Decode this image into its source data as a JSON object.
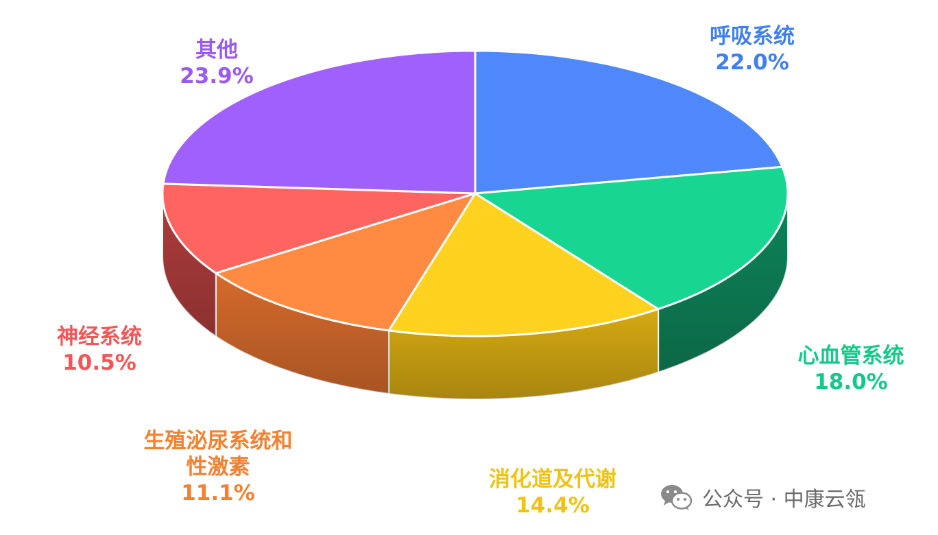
{
  "chart_data": {
    "type": "pie",
    "style": "3d",
    "slices": [
      {
        "label": "呼吸系统",
        "value_label": "22.0%",
        "value": 22.0,
        "color": "#4f88fb",
        "side_color": "#2c5cc4"
      },
      {
        "label": "心血管系统",
        "value_label": "18.0%",
        "value": 18.0,
        "color": "#19d592",
        "side_color": "#0f8a5f"
      },
      {
        "label": "消化道及代谢",
        "value_label": "14.4%",
        "value": 14.4,
        "color": "#fed21f",
        "side_color": "#e0b214"
      },
      {
        "label": "生殖泌尿系统和性激素",
        "value_label": "11.1%",
        "value": 11.1,
        "color": "#ff8b42",
        "side_color": "#e0702e"
      },
      {
        "label": "神经系统",
        "value_label": "10.5%",
        "value": 10.5,
        "color": "#ff6560",
        "side_color": "#b84040"
      },
      {
        "label": "其他",
        "value_label": "23.9%",
        "value": 23.9,
        "color": "#a060fb",
        "side_color": "#6f3fc0"
      }
    ]
  },
  "label_colors": [
    "#3f7ff5",
    "#13c98a",
    "#f0c215",
    "#f5802f",
    "#f55555",
    "#9a58f5"
  ],
  "watermark": {
    "text": "公众号 · 中康云瓴",
    "icon": "wechat-icon"
  }
}
